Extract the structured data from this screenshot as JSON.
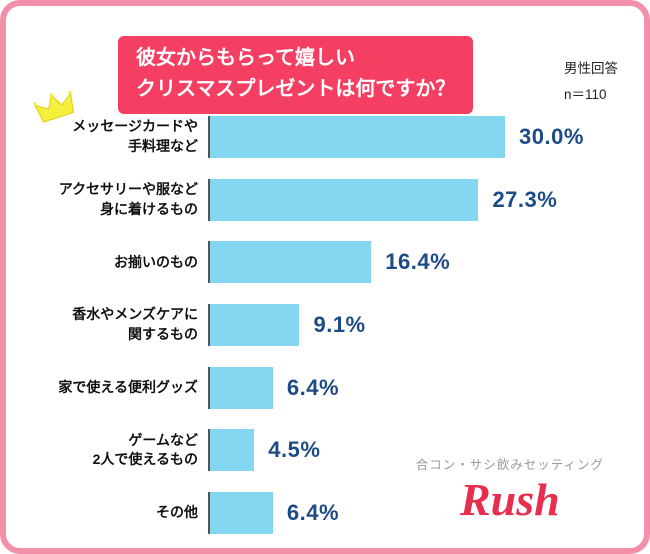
{
  "header": {
    "title": "彼女からもらって嬉しい\nクリスマスプレゼントは何ですか？",
    "respondent_note": "男性回答\nn＝110"
  },
  "footer": {
    "tagline": "合コン・サシ飲みセッティング",
    "brand": "Rush"
  },
  "colors": {
    "frame_border": "#f290aa",
    "title_background": "#f43f63",
    "bar_fill": "#85d6f0",
    "value_label": "#1d4b85",
    "brand": "#e82e4e",
    "crown": "#f5ef3d"
  },
  "chart_data": {
    "type": "bar",
    "orientation": "horizontal",
    "title": "彼女からもらって嬉しいクリスマスプレゼントは何ですか？",
    "subtitle": "男性回答 n＝110",
    "categories": [
      "メッセージカードや\n手料理など",
      "アクセサリーや服など\n身に着けるもの",
      "お揃いのもの",
      "香水やメンズケアに\n関するもの",
      "家で使える便利グッズ",
      "ゲームなど\n2人で使えるもの",
      "その他"
    ],
    "values": [
      30.0,
      27.3,
      16.4,
      9.1,
      6.4,
      4.5,
      6.4
    ],
    "value_labels": [
      "30.0%",
      "27.3%",
      "16.4%",
      "9.1%",
      "6.4%",
      "4.5%",
      "6.4%"
    ],
    "xlabel": "",
    "ylabel": "",
    "xlim": [
      0,
      30
    ],
    "grid": false,
    "legend": false
  }
}
